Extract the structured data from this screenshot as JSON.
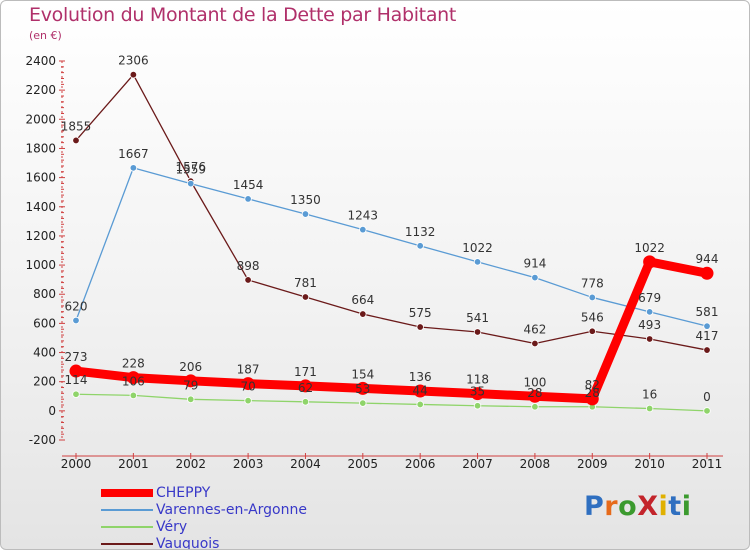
{
  "title": "Evolution du Montant de la Dette par Habitant",
  "unit": "(en €)",
  "logo": {
    "text": "ProXiti",
    "letter_colors": [
      "#2f6fc0",
      "#e66a1a",
      "#3b9a2e",
      "#c3242b",
      "#e0b000",
      "#2f6fc0",
      "#3b9a2e"
    ]
  },
  "chart_data": {
    "type": "line",
    "x": [
      "2000",
      "2001",
      "2002",
      "2003",
      "2004",
      "2005",
      "2006",
      "2007",
      "2008",
      "2009",
      "2010",
      "2011"
    ],
    "ylim": [
      -200,
      2400
    ],
    "yticks": [
      "-200",
      "0",
      "200",
      "400",
      "600",
      "800",
      "1000",
      "1200",
      "1400",
      "1600",
      "1800",
      "2000",
      "2200",
      "2400"
    ],
    "grid": false,
    "legend_position": "bottom-left",
    "series": [
      {
        "name": "Vauquois",
        "color": "#6b1a1a",
        "values": [
          1855,
          2306,
          1576,
          898,
          781,
          664,
          575,
          541,
          462,
          546,
          493,
          417
        ],
        "labels": [
          "1855",
          "2306",
          "1576",
          "898",
          "781",
          "664",
          "575",
          "541",
          "462",
          "546",
          "493",
          "417"
        ]
      },
      {
        "name": "Varennes-en-Argonne",
        "color": "#5a9bd4",
        "values": [
          620,
          1667,
          1559,
          1454,
          1350,
          1243,
          1132,
          1022,
          914,
          778,
          679,
          581
        ],
        "labels": [
          "620",
          "1667",
          "1559",
          "1454",
          "1350",
          "1243",
          "1132",
          "1022",
          "914",
          "778",
          "679",
          "581"
        ]
      },
      {
        "name": "Véry",
        "color": "#8fd46a",
        "values": [
          114,
          106,
          79,
          70,
          62,
          53,
          44,
          35,
          28,
          28,
          16,
          0
        ],
        "labels": [
          "114",
          "106",
          "79",
          "70",
          "62",
          "53",
          "44",
          "35",
          "28",
          "28",
          "16",
          "0"
        ]
      },
      {
        "name": "CHEPPY",
        "color": "#ff0000",
        "values": [
          273,
          228,
          206,
          187,
          171,
          154,
          136,
          118,
          100,
          82,
          1022,
          944
        ],
        "labels": [
          "273",
          "228",
          "206",
          "187",
          "171",
          "154",
          "136",
          "118",
          "100",
          "82",
          "1022",
          "944"
        ]
      }
    ],
    "legend_order": [
      "CHEPPY",
      "Varennes-en-Argonne",
      "Véry",
      "Vauquois"
    ]
  }
}
